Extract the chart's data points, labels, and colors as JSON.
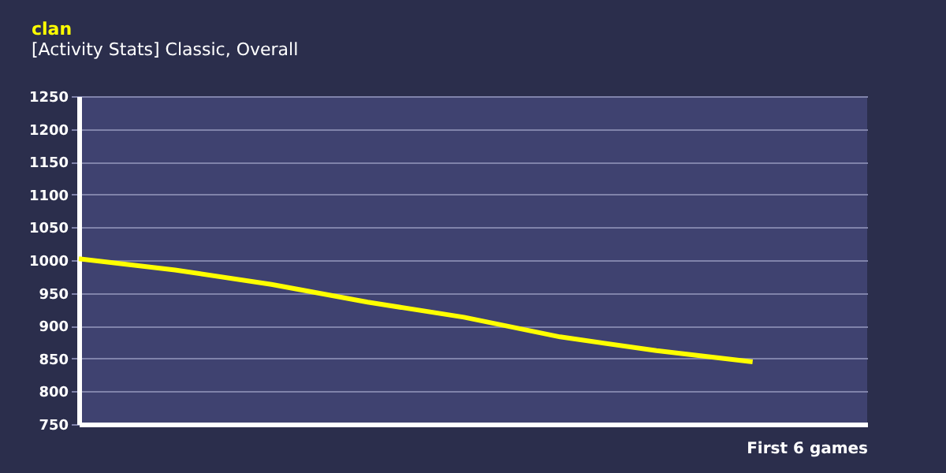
{
  "chart_data": {
    "type": "line",
    "title": "clan",
    "subtitle": "[Activity Stats] Classic, Overall",
    "xlabel": "First 6 games",
    "categories": [
      null,
      null,
      null,
      null,
      null,
      null,
      null,
      null
    ],
    "series": [
      {
        "color": "#ffff00",
        "values": [
          1002,
          985,
          963,
          936,
          913,
          883,
          862,
          845
        ]
      }
    ],
    "ylim": [
      750,
      1250
    ],
    "yticks": [
      750,
      800,
      850,
      900,
      950,
      1000,
      1050,
      1100,
      1150,
      1200,
      1250
    ],
    "grid": "y",
    "tick_labels": "y",
    "legend": false,
    "marker": "none",
    "line_style": "solid"
  }
}
